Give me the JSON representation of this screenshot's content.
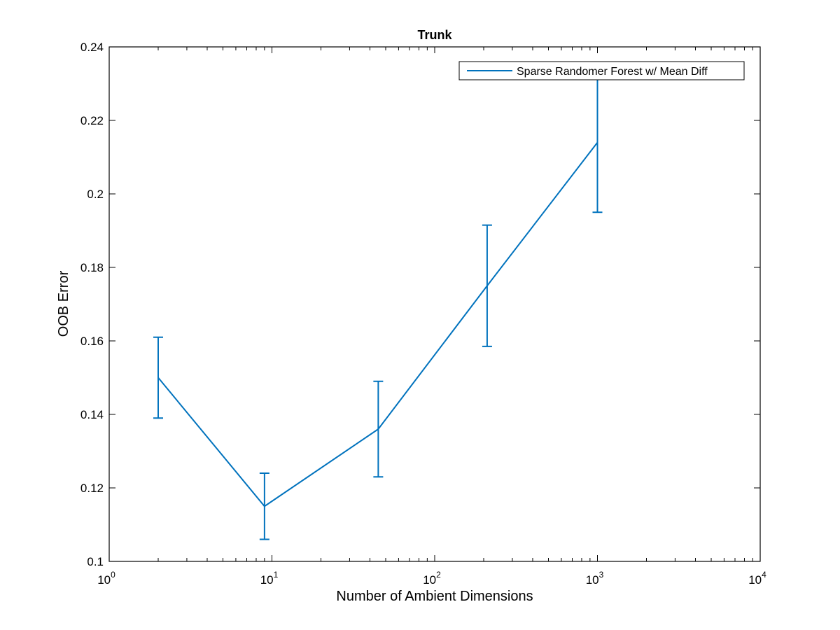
{
  "chart_data": {
    "type": "line",
    "title": "Trunk",
    "xlabel": "Number of Ambient Dimensions",
    "ylabel": "OOB Error",
    "xscale": "log",
    "xlim": [
      1,
      10000
    ],
    "ylim": [
      0.1,
      0.24
    ],
    "xticks": [
      {
        "value": 1,
        "base": "10",
        "exp": "0"
      },
      {
        "value": 10,
        "base": "10",
        "exp": "1"
      },
      {
        "value": 100,
        "base": "10",
        "exp": "2"
      },
      {
        "value": 1000,
        "base": "10",
        "exp": "3"
      },
      {
        "value": 10000,
        "base": "10",
        "exp": "4"
      }
    ],
    "yticks": [
      {
        "value": 0.1,
        "label": "0.1"
      },
      {
        "value": 0.12,
        "label": "0.12"
      },
      {
        "value": 0.14,
        "label": "0.14"
      },
      {
        "value": 0.16,
        "label": "0.16"
      },
      {
        "value": 0.18,
        "label": "0.18"
      },
      {
        "value": 0.2,
        "label": "0.2"
      },
      {
        "value": 0.22,
        "label": "0.22"
      },
      {
        "value": 0.24,
        "label": "0.24"
      }
    ],
    "grid": false,
    "legend_position": "top-right",
    "series": [
      {
        "name": "Sparse Randomer Forest w/ Mean Diff",
        "color": "#0072BD",
        "x": [
          2,
          9,
          45,
          210,
          1000
        ],
        "y": [
          0.15,
          0.115,
          0.136,
          0.175,
          0.214
        ],
        "err_low": [
          0.139,
          0.106,
          0.123,
          0.1585,
          0.195
        ],
        "err_high": [
          0.161,
          0.124,
          0.149,
          0.1915,
          0.233
        ]
      }
    ]
  }
}
